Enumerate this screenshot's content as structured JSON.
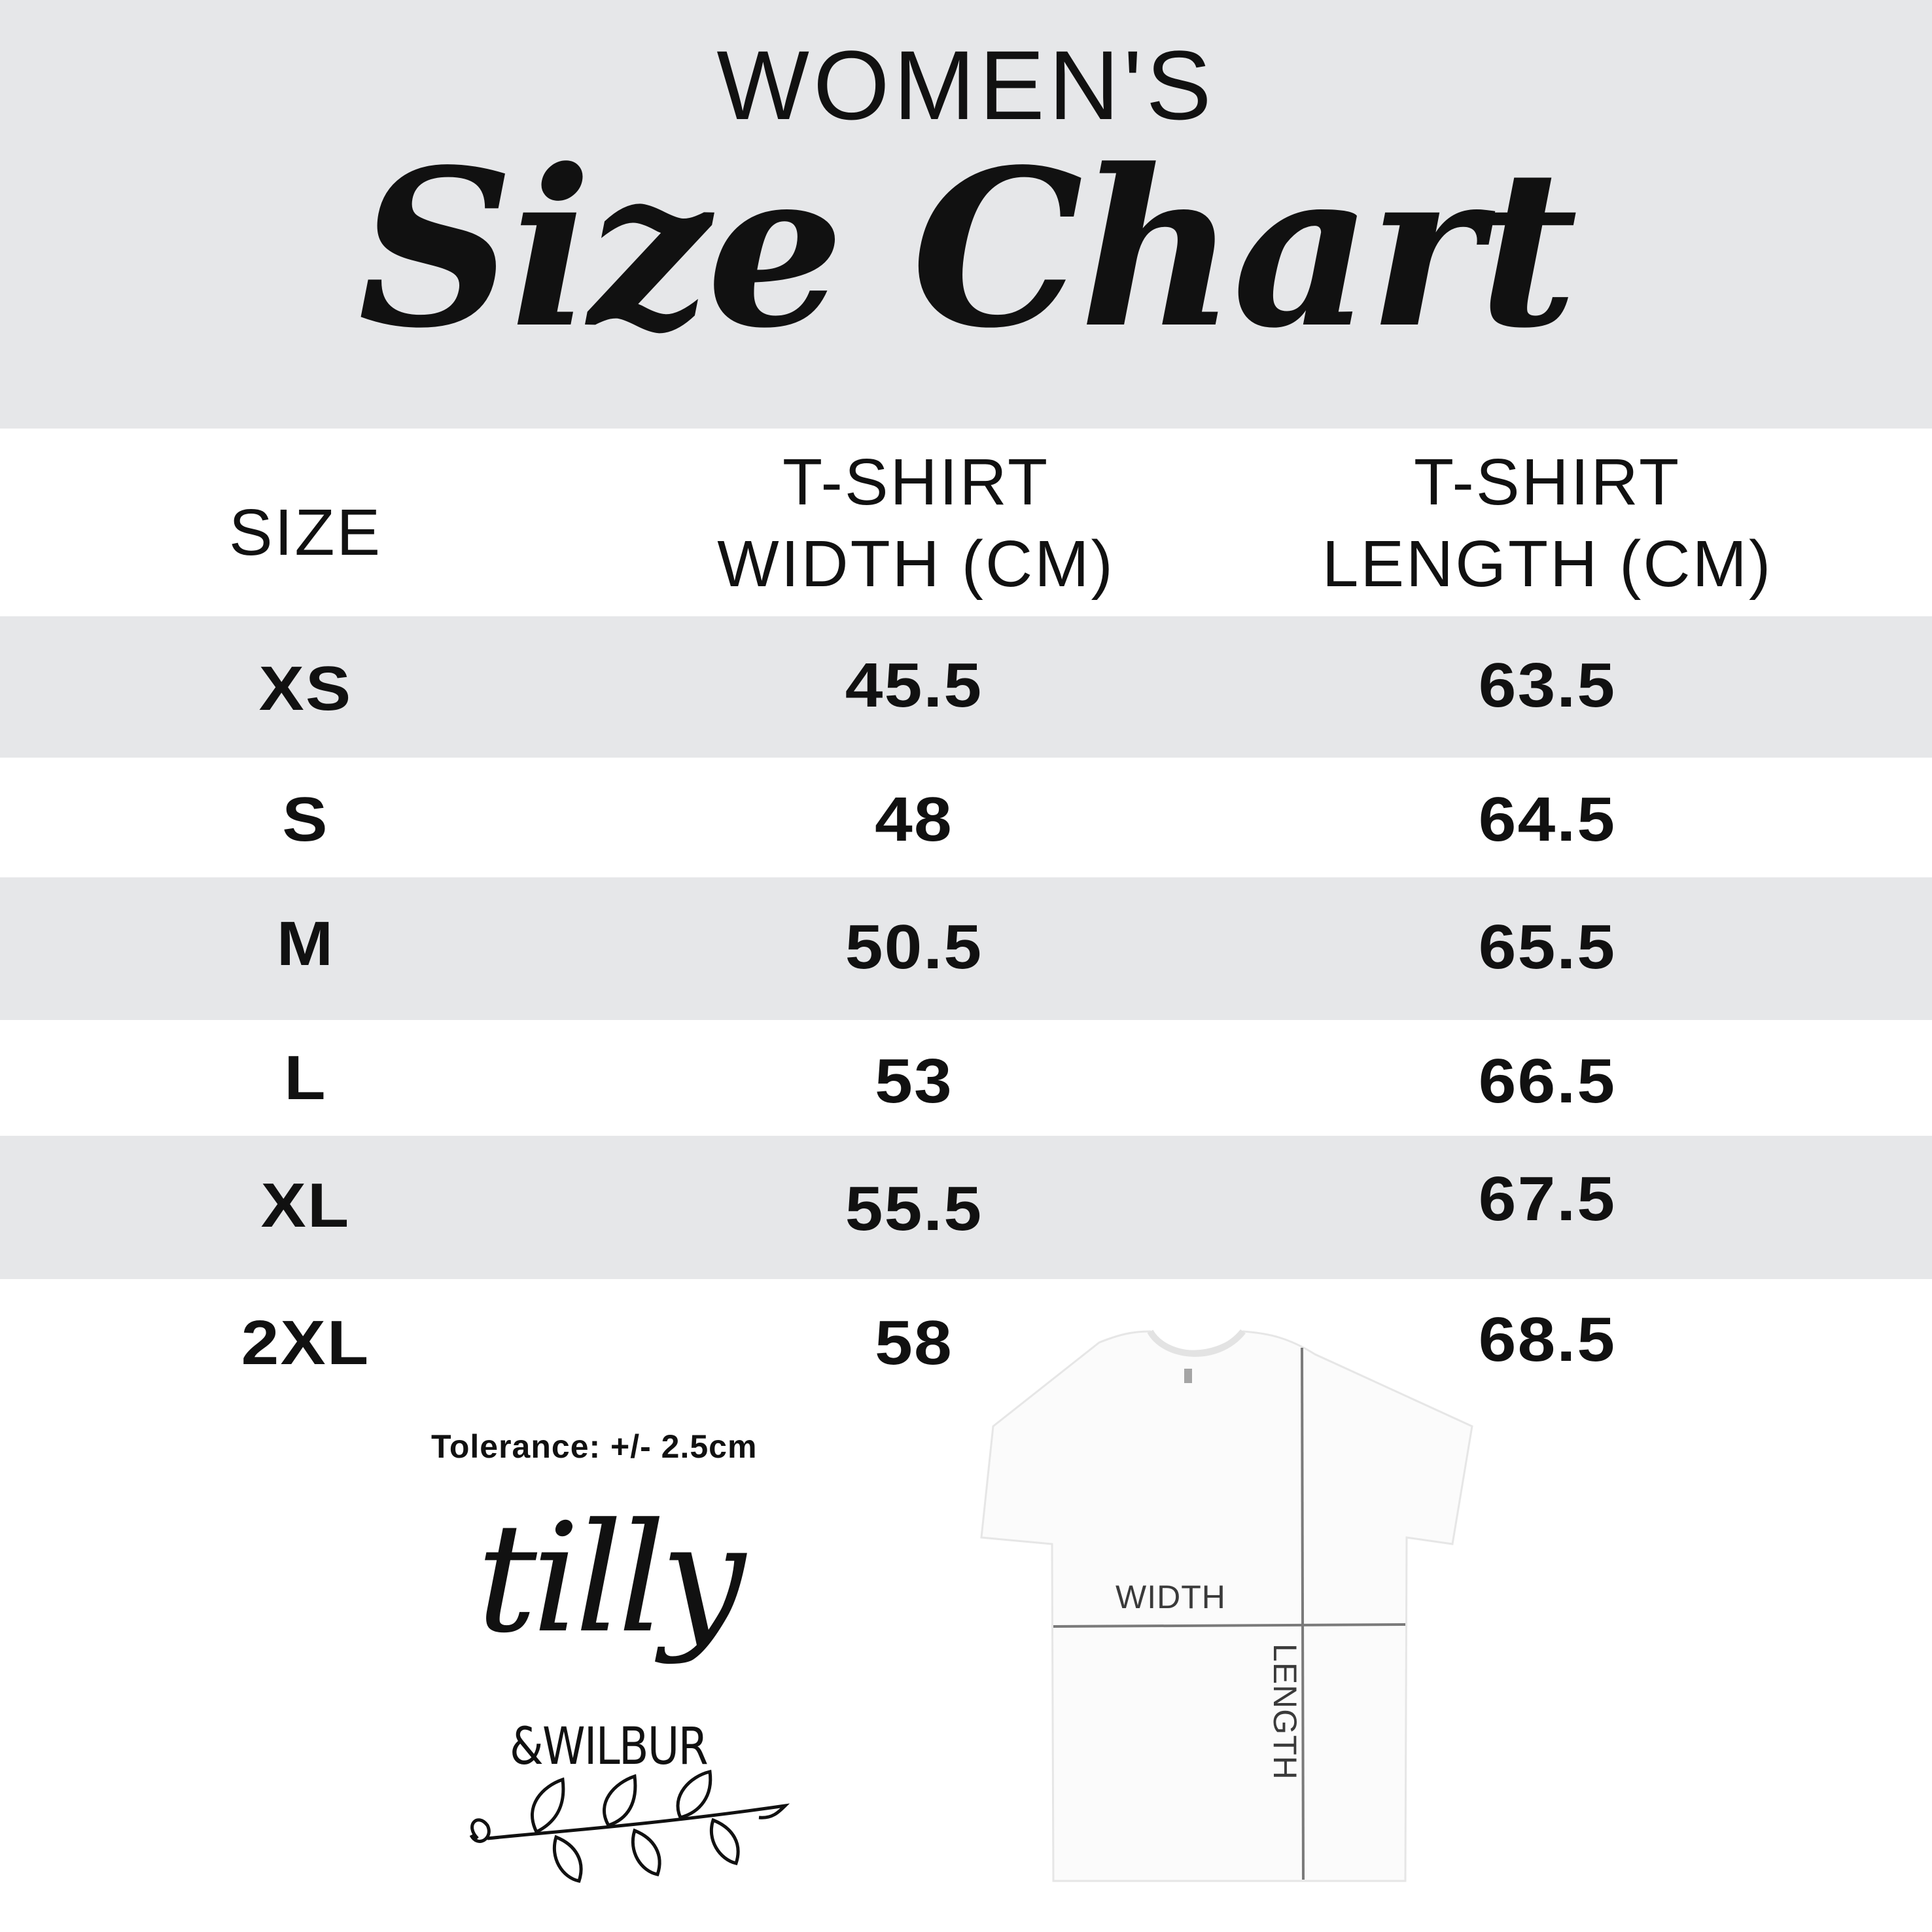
{
  "header": {
    "subtitle": "WOMEN'S",
    "title": "Size Chart"
  },
  "table": {
    "columns": [
      "SIZE",
      "T-SHIRT WIDTH (CM)",
      "T-SHIRT LENGTH (CM)"
    ],
    "column_lines": [
      [
        "SIZE"
      ],
      [
        "T-SHIRT",
        "WIDTH (CM)"
      ],
      [
        "T-SHIRT",
        "LENGTH (CM)"
      ]
    ],
    "rows": [
      {
        "size": "XS",
        "width": "45.5",
        "length": "63.5"
      },
      {
        "size": "S",
        "width": "48",
        "length": "64.5"
      },
      {
        "size": "M",
        "width": "50.5",
        "length": "65.5"
      },
      {
        "size": "L",
        "width": "53",
        "length": "66.5"
      },
      {
        "size": "XL",
        "width": "55.5",
        "length": "67.5"
      },
      {
        "size": "2XL",
        "width": "58",
        "length": "68.5"
      }
    ]
  },
  "tolerance": "Tolerance: +/- 2.5cm",
  "logo": {
    "line1": "tilly",
    "line2": "&WILBUR"
  },
  "diagram": {
    "width_label": "WIDTH",
    "length_label": "LENGTH",
    "line_color": "#7a7a7a"
  },
  "colors": {
    "band": "#e6e7e9",
    "text": "#111111"
  }
}
